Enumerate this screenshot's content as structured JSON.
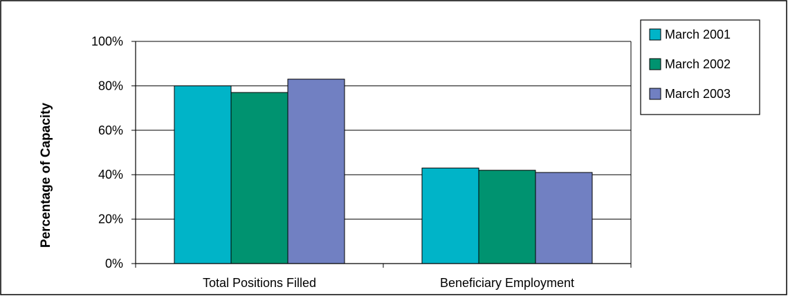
{
  "chart_data": {
    "type": "bar",
    "title": "",
    "xlabel": "",
    "ylabel": "Percentage of Capacity",
    "categories": [
      "Total Positions Filled",
      "Beneficiary Employment"
    ],
    "series": [
      {
        "name": "March 2001",
        "values": [
          80,
          43
        ],
        "color": "#00B4C8"
      },
      {
        "name": "March 2002",
        "values": [
          77,
          42
        ],
        "color": "#009370"
      },
      {
        "name": "March 2003",
        "values": [
          83,
          41
        ],
        "color": "#7180C2"
      }
    ],
    "ylim": [
      0,
      100
    ],
    "yticks": [
      0,
      20,
      40,
      60,
      80,
      100
    ],
    "ytick_labels": [
      "0%",
      "20%",
      "40%",
      "60%",
      "80%",
      "100%"
    ],
    "grid": true,
    "legend_position": "right"
  }
}
